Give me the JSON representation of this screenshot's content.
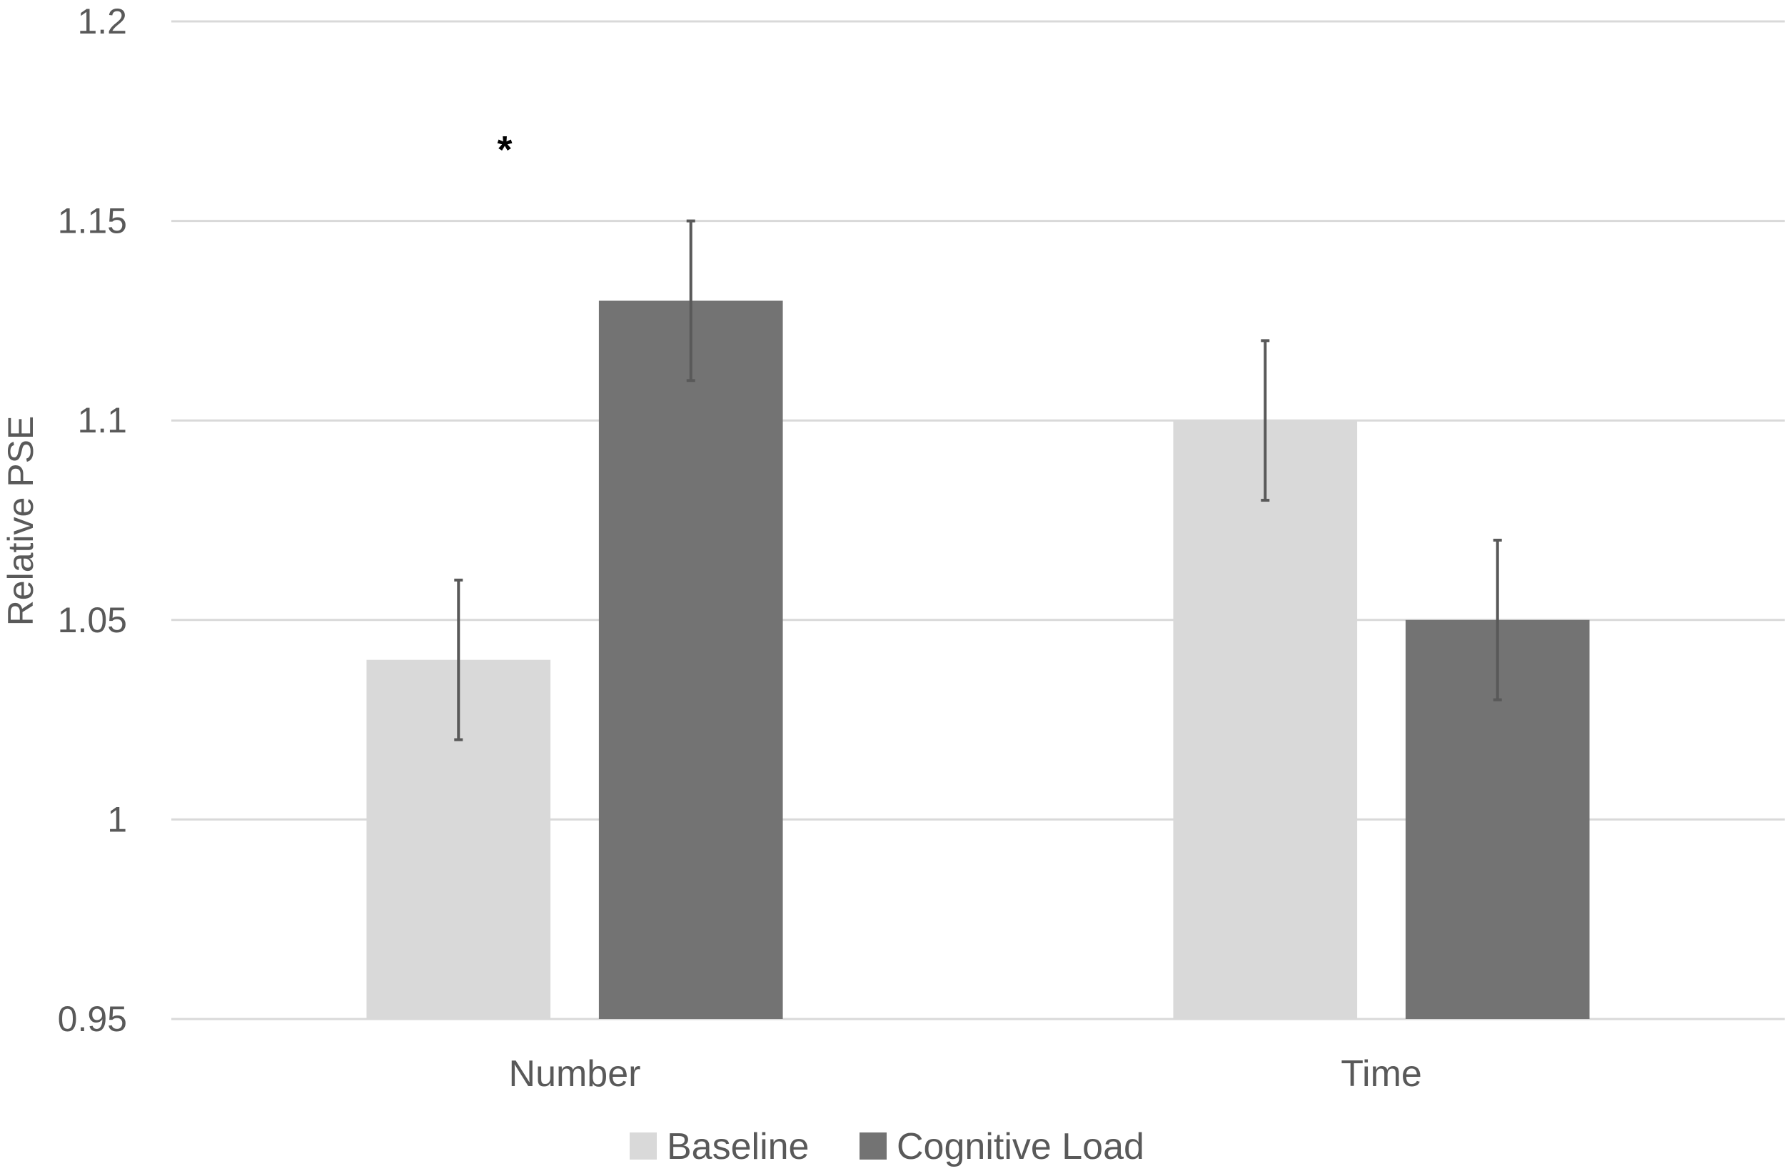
{
  "chart_data": {
    "type": "bar",
    "categories": [
      "Number",
      "Time"
    ],
    "series": [
      {
        "name": "Baseline",
        "values": [
          1.04,
          1.1
        ],
        "errors": [
          0.02,
          0.02
        ],
        "color": "#d9d9d9"
      },
      {
        "name": "Cognitive Load",
        "values": [
          1.13,
          1.05
        ],
        "errors": [
          0.02,
          0.02
        ],
        "color": "#737373"
      }
    ],
    "ylabel": "Relative PSE",
    "ylim": [
      0.95,
      1.2
    ],
    "yticks": [
      0.95,
      1,
      1.05,
      1.1,
      1.15,
      1.2
    ],
    "ytick_labels": [
      "0.95",
      "1",
      "1.05",
      "1.1",
      "1.15",
      "1.2"
    ],
    "grid": true,
    "legend": "bottom-center",
    "annotations": [
      {
        "text": "*",
        "category": "Number"
      }
    ]
  }
}
